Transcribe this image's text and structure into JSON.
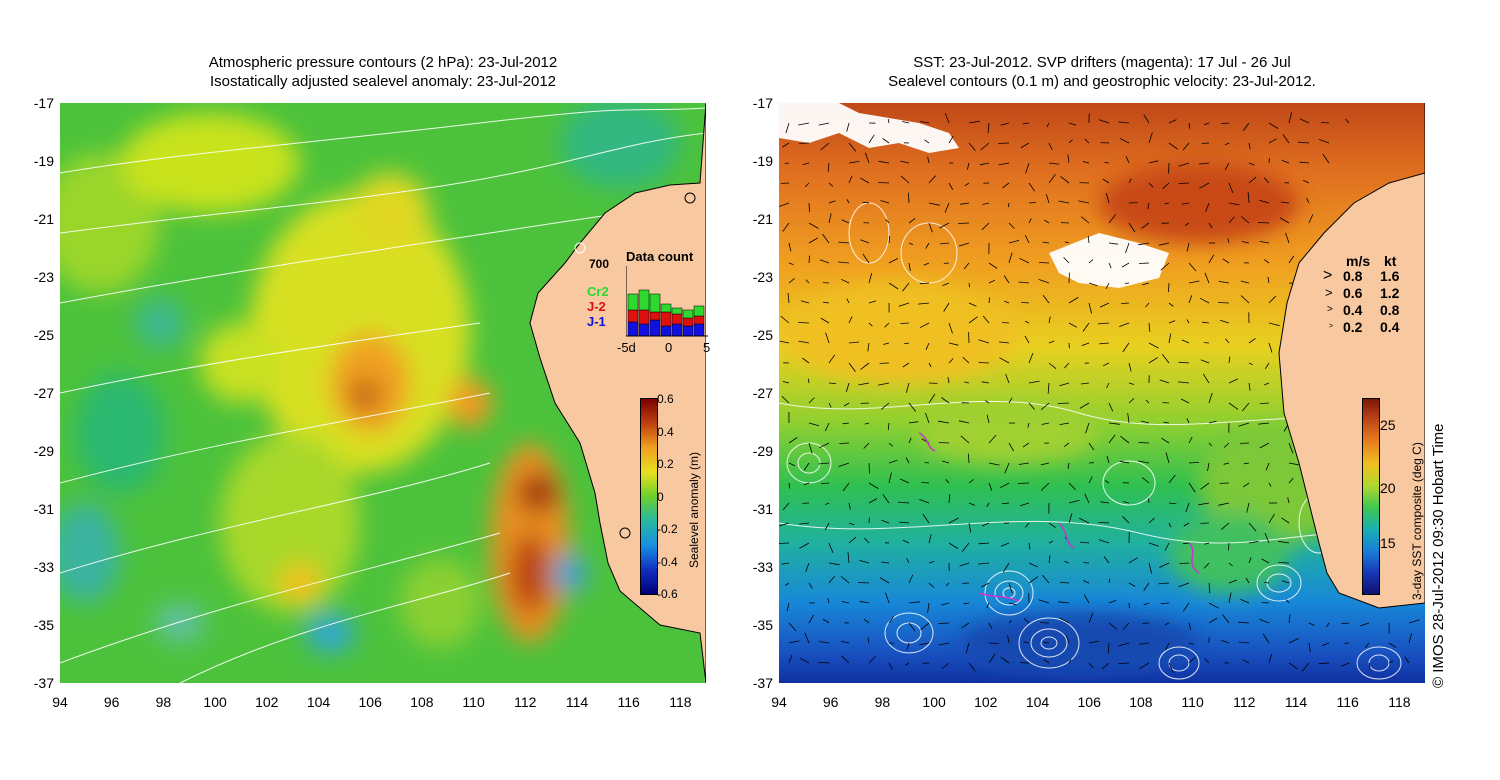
{
  "left_panel": {
    "title_line1": "Atmospheric pressure contours (2 hPa): 23-Jul-2012",
    "title_line2": "Isostatically adjusted sealevel anomaly: 23-Jul-2012",
    "colorbar": {
      "label": "Sealevel anomaly (m)",
      "ticks": [
        "0.6",
        "0.4",
        "0.2",
        "0",
        "-0.2",
        "-0.4",
        "-0.6"
      ]
    },
    "data_count": {
      "title": "Data count",
      "value_label": "700",
      "missions": [
        "Cr2",
        "J-2",
        "J-1"
      ],
      "axis": [
        "-5d",
        "0",
        "5"
      ]
    }
  },
  "right_panel": {
    "title_line1": "SST: 23-Jul-2012. SVP drifters (magenta): 17 Jul - 26 Jul",
    "title_line2": "Sealevel contours (0.1 m) and geostrophic velocity: 23-Jul-2012.",
    "colorbar": {
      "label": "3-day SST composite (deg C)",
      "ticks": [
        "25",
        "20",
        "15"
      ]
    },
    "speed_legend": {
      "header_ms": "m/s",
      "header_kt": "kt",
      "rows": [
        {
          "ms": "0.8",
          "kt": "1.6"
        },
        {
          "ms": "0.6",
          "kt": "1.2"
        },
        {
          "ms": "0.4",
          "kt": "0.8"
        },
        {
          "ms": "0.2",
          "kt": "0.4"
        }
      ]
    },
    "credit": "© IMOS 28-Jul-2012 09:30 Hobart Time"
  },
  "axes": {
    "lat_ticks": [
      "-17",
      "-19",
      "-21",
      "-23",
      "-25",
      "-27",
      "-29",
      "-31",
      "-33",
      "-35",
      "-37"
    ],
    "lon_ticks": [
      "94",
      "96",
      "98",
      "100",
      "102",
      "104",
      "106",
      "108",
      "110",
      "112",
      "114",
      "116",
      "118"
    ]
  },
  "colors": {
    "land": "#f8c8a0",
    "coast": "#000000",
    "contour": "#ffffff",
    "drifter": "#cc33cc"
  }
}
